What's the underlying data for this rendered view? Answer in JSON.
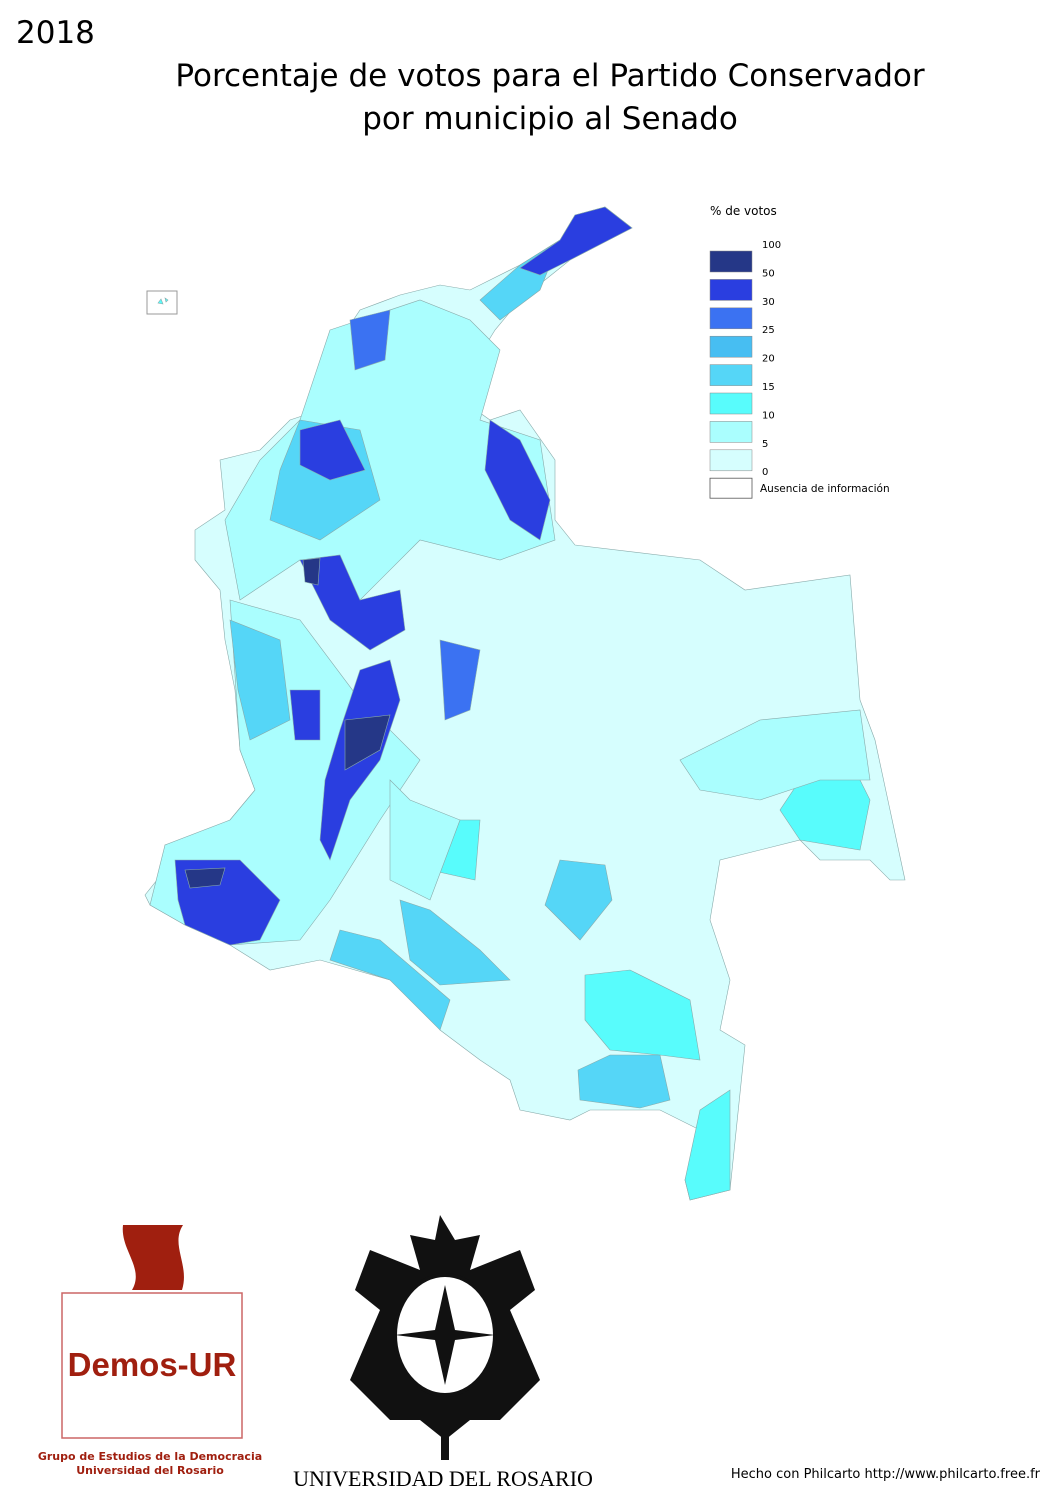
{
  "header": {
    "year": "2018",
    "title_lines": [
      "Porcentaje de votos para el Partido Conservador",
      "por municipio al Senado"
    ]
  },
  "legend": {
    "title": "% de votos",
    "breaks": [
      100,
      50,
      30,
      25,
      20,
      15,
      10,
      5,
      0
    ],
    "classes": [
      {
        "color": "#253787"
      },
      {
        "color": "#2a3ee0"
      },
      {
        "color": "#3b72f2"
      },
      {
        "color": "#47bef2"
      },
      {
        "color": "#55d6f7"
      },
      {
        "color": "#58fcfc"
      },
      {
        "color": "#aafefe"
      },
      {
        "color": "#d6fefe"
      }
    ],
    "no_data": {
      "label": "Ausencia de información",
      "color": "#ffffff"
    }
  },
  "logos": {
    "demos": {
      "name": "Demos-UR",
      "caption_lines": [
        "Grupo de Estudios de la Democracia",
        "Universidad del Rosario"
      ]
    },
    "university": {
      "name": "UNIVERSIDAD DEL ROSARIO"
    }
  },
  "footer": "Hecho con Philcarto http://www.philcarto.free.fr"
}
